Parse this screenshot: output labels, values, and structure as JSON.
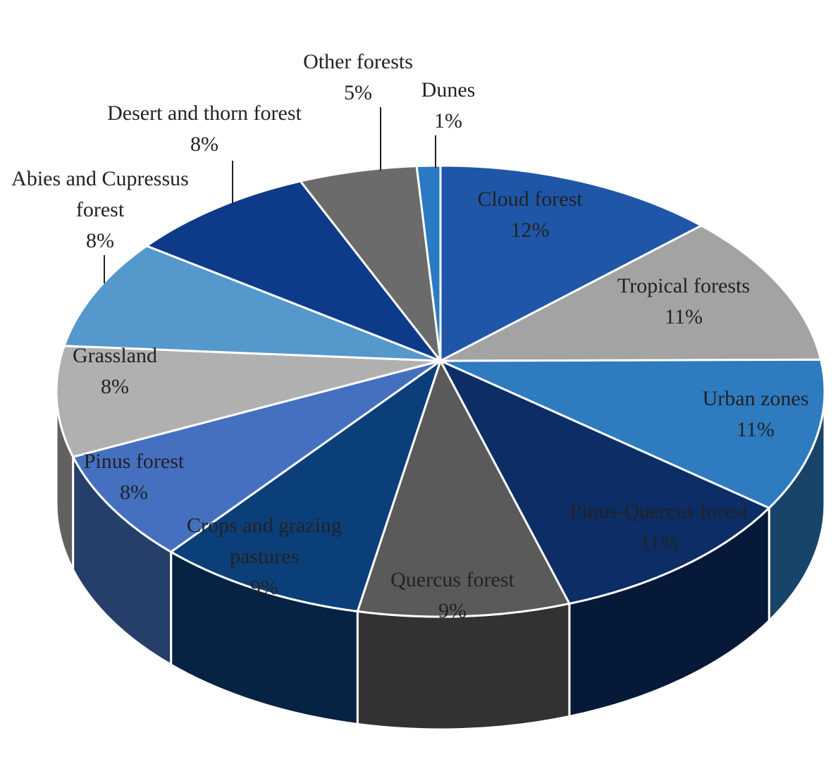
{
  "chart_data": {
    "type": "pie",
    "categories": [
      "Cloud forest",
      "Tropical forests",
      "Urban zones",
      "Pinus-Quercus forest",
      "Quercus forest",
      "Crops and grazing pastures",
      "Pinus forest",
      "Grassland",
      "Abies and Cupressus forest",
      "Desert and thorn forest",
      "Other forests",
      "Dunes"
    ],
    "values": [
      12,
      11,
      11,
      11,
      9,
      9,
      8,
      8,
      8,
      8,
      5,
      1
    ],
    "value_labels": [
      "12%",
      "11%",
      "11%",
      "11%",
      "9%",
      "9%",
      "8%",
      "8%",
      "8%",
      "8%",
      "5%",
      "1%"
    ],
    "colors": [
      "#1f56a8",
      "#a3a3a3",
      "#2e7bc0",
      "#0c2d66",
      "#5a5a5a",
      "#0b3f7a",
      "#4570c0",
      "#b0b0b0",
      "#5598cc",
      "#0d3b8a",
      "#6b6b6b",
      "#2b7ac4"
    ]
  }
}
